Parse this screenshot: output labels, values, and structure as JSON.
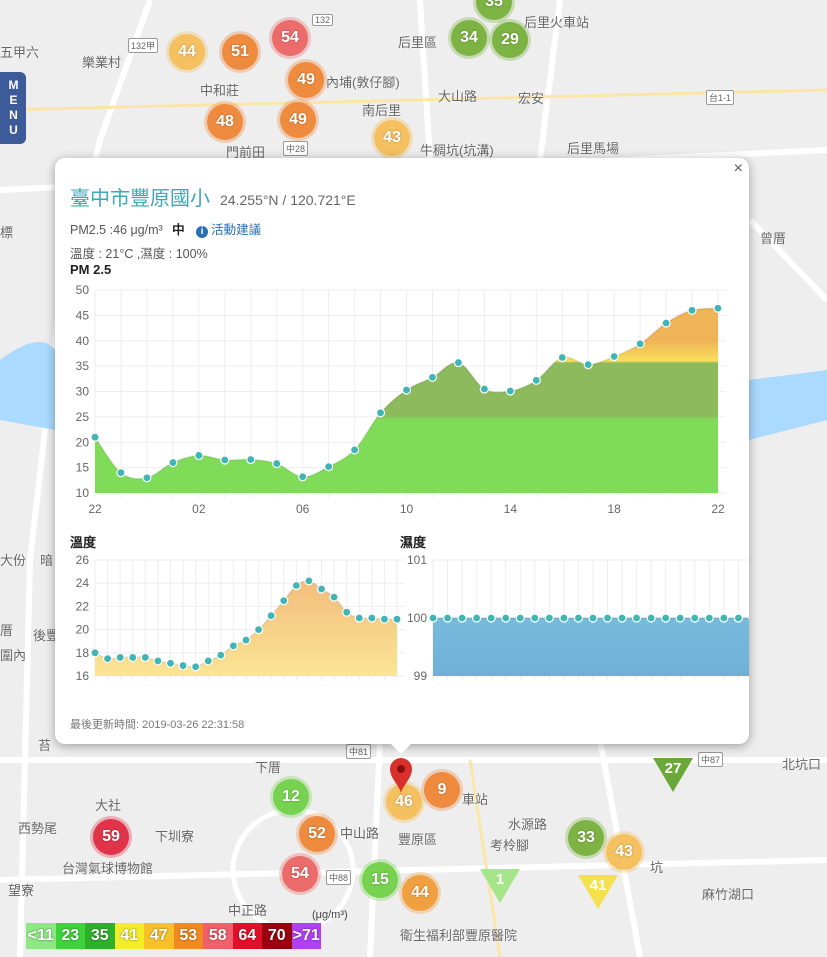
{
  "map": {
    "labels": [
      "五甲六",
      "樂業村",
      "中和莊",
      "內埔(敦仔腳)",
      "南后里",
      "后里區",
      "后里火車站",
      "宏安",
      "大山路",
      "門前田",
      "牛稠坑(坑溝)",
      "后里馬場",
      "標",
      "曾厝",
      "大份",
      "暗",
      "厝",
      "後豐",
      "圍內",
      "苔",
      "下厝",
      "大社",
      "西勢尾",
      "下圳寮",
      "台灣氣球博物館",
      "望寮",
      "豐原區",
      "考柃腳",
      "北坑口",
      "麻竹湖口",
      "水源路",
      "車站",
      "衛生福利部豐原醫院",
      "坑",
      "中山路",
      "中正路"
    ],
    "road_badges": [
      "132",
      "132甲",
      "中28",
      "台1-1",
      "中81",
      "中88",
      "中87"
    ],
    "markers": [
      {
        "value": "35",
        "color": "#7cb342"
      },
      {
        "value": "34",
        "color": "#7cb342"
      },
      {
        "value": "29",
        "color": "#7cb342"
      },
      {
        "value": "44",
        "color": "#f4c060"
      },
      {
        "value": "51",
        "color": "#ee8b3f"
      },
      {
        "value": "54",
        "color": "#ec6b6b"
      },
      {
        "value": "49",
        "color": "#ee8b3f"
      },
      {
        "value": "48",
        "color": "#ee8b3f"
      },
      {
        "value": "49",
        "color": "#ee8b3f"
      },
      {
        "value": "43",
        "color": "#f4c060"
      },
      {
        "value": "12",
        "color": "#76d24f"
      },
      {
        "value": "52",
        "color": "#ee8b3f"
      },
      {
        "value": "54",
        "color": "#ec6b6b"
      },
      {
        "value": "59",
        "color": "#e0344a"
      },
      {
        "value": "15",
        "color": "#76d24f"
      },
      {
        "value": "44",
        "color": "#f0a040"
      },
      {
        "value": "9",
        "color": "#ee8b3f"
      },
      {
        "value": "46",
        "color": "#f4c060"
      },
      {
        "value": "33",
        "color": "#7cb342"
      },
      {
        "value": "43",
        "color": "#f4c060"
      }
    ],
    "triangles": [
      {
        "value": "41",
        "color": "#f5e050"
      },
      {
        "value": "1",
        "color": "#a6e58a"
      },
      {
        "value": "27",
        "color": "#6aa83a"
      }
    ],
    "menu": "MENU"
  },
  "popup": {
    "close": "×",
    "station": "臺中市豐原國小",
    "coords": "24.255°N / 120.721°E",
    "pm_line": "PM2.5 :46 μg/m³",
    "level": "中",
    "advice": "活動建議",
    "weather": "溫度 : 21°C ,濕度 : 100%",
    "updated": "最後更新時間: 2019-03-26 22:31:58"
  },
  "chart_data": [
    {
      "type": "area",
      "title": "PM 2.5",
      "x": [
        "22",
        "23",
        "00",
        "01",
        "02",
        "03",
        "04",
        "05",
        "06",
        "07",
        "08",
        "09",
        "10",
        "11",
        "12",
        "13",
        "14",
        "15",
        "16",
        "17",
        "18",
        "19",
        "20",
        "21",
        "22"
      ],
      "xticks": [
        "22",
        "02",
        "06",
        "10",
        "14",
        "18",
        "22"
      ],
      "values": [
        21,
        14,
        13,
        16,
        17.4,
        16.5,
        16.6,
        15.8,
        13.2,
        15.2,
        18.5,
        25.8,
        30.3,
        32.8,
        35.7,
        30.5,
        30.1,
        32.2,
        36.7,
        35.3,
        36.9,
        39.4,
        43.5,
        46,
        46.4
      ],
      "ylim": [
        10,
        50
      ],
      "yticks": [
        10,
        15,
        20,
        25,
        30,
        35,
        40,
        45,
        50
      ]
    },
    {
      "type": "area",
      "title": "溫度",
      "values": [
        18,
        17.5,
        17.6,
        17.6,
        17.6,
        17.3,
        17.1,
        16.9,
        16.8,
        17.3,
        17.8,
        18.6,
        19.1,
        20,
        21.2,
        22.5,
        23.8,
        24.2,
        23.5,
        22.8,
        21.5,
        21,
        21,
        20.9,
        20.9
      ],
      "ylim": [
        16,
        26
      ],
      "yticks": [
        16,
        18,
        20,
        22,
        24,
        26
      ]
    },
    {
      "type": "area",
      "title": "濕度",
      "values": [
        100,
        100,
        100,
        100,
        100,
        100,
        100,
        100,
        100,
        100,
        100,
        100,
        100,
        100,
        100,
        100,
        100,
        100,
        100,
        100,
        100,
        100,
        100,
        100,
        100
      ],
      "ylim": [
        99,
        101
      ],
      "yticks": [
        99,
        100,
        101
      ]
    }
  ],
  "legend": {
    "unit": "(μg/m³)",
    "items": [
      {
        "label": "<11",
        "color": "#8de884"
      },
      {
        "label": "23",
        "color": "#3ed33a"
      },
      {
        "label": "35",
        "color": "#2eb02a"
      },
      {
        "label": "41",
        "color": "#f2ec2a"
      },
      {
        "label": "47",
        "color": "#f8c02a"
      },
      {
        "label": "53",
        "color": "#f08a20"
      },
      {
        "label": "58",
        "color": "#f0606a"
      },
      {
        "label": "64",
        "color": "#e0102a"
      },
      {
        "label": "70",
        "color": "#9a0010"
      },
      {
        "label": ">71",
        "color": "#b040f0"
      }
    ]
  }
}
